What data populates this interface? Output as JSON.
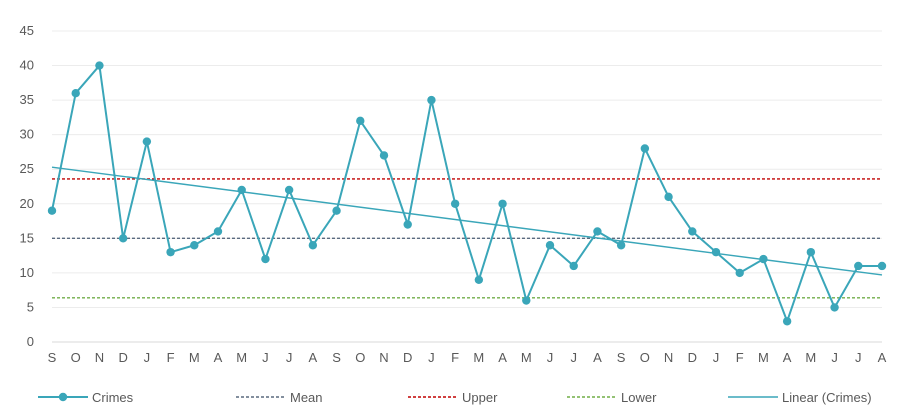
{
  "chart_data": {
    "type": "line",
    "title": "",
    "xlabel": "",
    "ylabel": "",
    "ylim": [
      0,
      45
    ],
    "yticks": [
      0,
      5,
      10,
      15,
      20,
      25,
      30,
      35,
      40,
      45
    ],
    "grid": true,
    "legend_position": "bottom",
    "categories": [
      "S",
      "O",
      "N",
      "D",
      "J",
      "F",
      "M",
      "A",
      "M",
      "J",
      "J",
      "A",
      "S",
      "O",
      "N",
      "D",
      "J",
      "F",
      "M",
      "A",
      "M",
      "J",
      "J",
      "A",
      "S",
      "O",
      "N",
      "D",
      "J",
      "F",
      "M",
      "A",
      "M",
      "J",
      "J",
      "A"
    ],
    "series": [
      {
        "name": "Crimes",
        "color": "#3AA6B9",
        "marker": "circle",
        "values": [
          19,
          36,
          40,
          15,
          29,
          13,
          14,
          16,
          22,
          12,
          22,
          14,
          19,
          32,
          27,
          17,
          35,
          20,
          9,
          20,
          6,
          14,
          11,
          16,
          14,
          28,
          21,
          16,
          13,
          10,
          12,
          3,
          13,
          5,
          11,
          11
        ]
      }
    ],
    "reference_lines": [
      {
        "name": "Mean",
        "value": 15,
        "color": "#5A6A7F",
        "dash": "dashed"
      },
      {
        "name": "Upper",
        "value": 23.6,
        "color": "#C00000",
        "dash": "dashed"
      },
      {
        "name": "Lower",
        "value": 6.4,
        "color": "#70AD47",
        "dash": "dashed"
      }
    ],
    "trendline": {
      "name": "Linear (Crimes)",
      "start": 25.3,
      "end": 9.7,
      "color": "#3AA6B9"
    }
  }
}
